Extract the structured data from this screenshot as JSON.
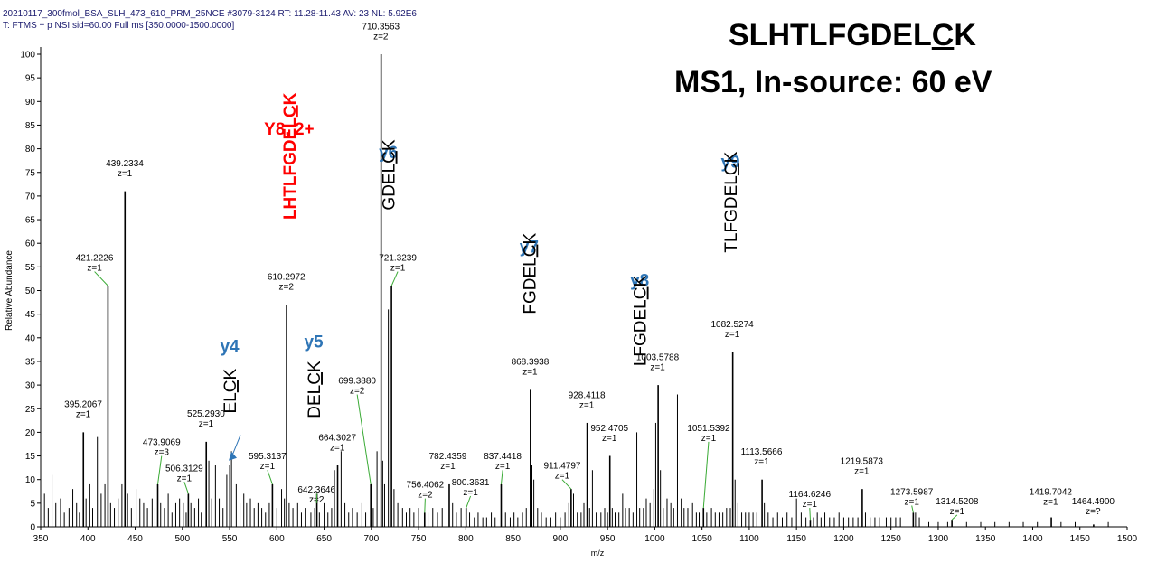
{
  "header": {
    "line1": "20210117_300fmol_BSA_SLH_473_610_PRM_25NCE #3079-3124   RT: 11.28-11.43   AV: 23   NL: 5.92E6",
    "line2": "T: FTMS + p NSI sid=60.00  Full ms [350.0000-1500.0000]"
  },
  "title": {
    "line1_pre": "SLHTLFGDEL",
    "line1_ul": "C",
    "line1_post": "K",
    "line2": "MS1, In-source: 60 eV"
  },
  "colors": {
    "axis": "#000000",
    "peak": "#000000",
    "blue": "#2e75b6",
    "red": "#ff0000",
    "leader": "#3aaa35",
    "header": "#1a1a6e"
  },
  "chart_data": {
    "type": "bar",
    "title": "SLHTLFGDELCK MS1, In-source: 60 eV",
    "xlabel": "m/z",
    "ylabel": "Relative Abundance",
    "xlim": [
      350,
      1500
    ],
    "ylim": [
      0,
      100
    ],
    "xticks": [
      350,
      400,
      450,
      500,
      550,
      600,
      650,
      700,
      750,
      800,
      850,
      900,
      950,
      1000,
      1050,
      1100,
      1150,
      1200,
      1250,
      1300,
      1350,
      1400,
      1450,
      1500
    ],
    "yticks": [
      0,
      5,
      10,
      15,
      20,
      25,
      30,
      35,
      40,
      45,
      50,
      55,
      60,
      65,
      70,
      75,
      80,
      85,
      90,
      95,
      100
    ],
    "peaks": [
      {
        "mz": 395.2067,
        "int": 20,
        "label": "395.2067",
        "z": "z=1",
        "lx": 395,
        "ly": 23
      },
      {
        "mz": 421.2226,
        "int": 51,
        "label": "421.2226",
        "z": "z=1",
        "lx": 407,
        "ly": 54,
        "leader": true
      },
      {
        "mz": 439.2334,
        "int": 71,
        "label": "439.2334",
        "z": "z=1",
        "lx": 439,
        "ly": 74
      },
      {
        "mz": 473.9069,
        "int": 9,
        "label": "473.9069",
        "z": "z=3",
        "lx": 478,
        "ly": 15,
        "leader": true
      },
      {
        "mz": 506.3129,
        "int": 7,
        "label": "506.3129",
        "z": "z=1",
        "lx": 502,
        "ly": 9.5,
        "leader": true
      },
      {
        "mz": 525.293,
        "int": 18,
        "label": "525.2930",
        "z": "z=1",
        "lx": 525,
        "ly": 21
      },
      {
        "mz": 595.3137,
        "int": 9,
        "label": "595.3137",
        "z": "z=1",
        "lx": 590,
        "ly": 12,
        "leader": true
      },
      {
        "mz": 610.2972,
        "int": 47,
        "label": "610.2972",
        "z": "z=2",
        "lx": 610,
        "ly": 50
      },
      {
        "mz": 642.3646,
        "int": 7,
        "label": "642.3646",
        "z": "z=2",
        "lx": 642,
        "ly": 5,
        "leader": true
      },
      {
        "mz": 664.3027,
        "int": 13,
        "label": "664.3027",
        "z": "z=1",
        "lx": 664,
        "ly": 16
      },
      {
        "mz": 699.388,
        "int": 9,
        "label": "699.3880",
        "z": "z=2",
        "lx": 685,
        "ly": 28,
        "leader": true
      },
      {
        "mz": 710.3563,
        "int": 100,
        "label": "710.3563",
        "z": "z=2",
        "lx": 710,
        "ly": 103
      },
      {
        "mz": 721.3239,
        "int": 51,
        "label": "721.3239",
        "z": "z=1",
        "lx": 728,
        "ly": 54,
        "leader": true
      },
      {
        "mz": 756.4062,
        "int": 3,
        "label": "756.4062",
        "z": "z=2",
        "lx": 757,
        "ly": 6,
        "leader": true
      },
      {
        "mz": 782.4359,
        "int": 9,
        "label": "782.4359",
        "z": "z=1",
        "lx": 781,
        "ly": 12
      },
      {
        "mz": 800.3631,
        "int": 4,
        "label": "800.3631",
        "z": "z=1",
        "lx": 805,
        "ly": 6.5,
        "leader": true
      },
      {
        "mz": 837.4418,
        "int": 9,
        "label": "837.4418",
        "z": "z=1",
        "lx": 839,
        "ly": 12,
        "leader": true
      },
      {
        "mz": 868.3938,
        "int": 29,
        "label": "868.3938",
        "z": "z=1",
        "lx": 868,
        "ly": 32
      },
      {
        "mz": 911.4797,
        "int": 8,
        "label": "911.4797",
        "z": "z=1",
        "lx": 902,
        "ly": 10,
        "leader": true
      },
      {
        "mz": 928.4118,
        "int": 22,
        "label": "928.4118",
        "z": "z=1",
        "lx": 928,
        "ly": 25
      },
      {
        "mz": 952.4705,
        "int": 15,
        "label": "952.4705",
        "z": "z=1",
        "lx": 952,
        "ly": 18
      },
      {
        "mz": 1003.5788,
        "int": 30,
        "label": "1003.5788",
        "z": "z=1",
        "lx": 1003,
        "ly": 33
      },
      {
        "mz": 1051.5392,
        "int": 4,
        "label": "1051.5392",
        "z": "z=1",
        "lx": 1057,
        "ly": 18,
        "leader": true
      },
      {
        "mz": 1082.5274,
        "int": 37,
        "label": "1082.5274",
        "z": "z=1",
        "lx": 1082,
        "ly": 40
      },
      {
        "mz": 1113.5666,
        "int": 10,
        "label": "1113.5666",
        "z": "z=1",
        "lx": 1113,
        "ly": 13
      },
      {
        "mz": 1164.6246,
        "int": 1.5,
        "label": "1164.6246",
        "z": "z=1",
        "lx": 1164,
        "ly": 4,
        "leader": true
      },
      {
        "mz": 1219.5873,
        "int": 8,
        "label": "1219.5873",
        "z": "z=1",
        "lx": 1219,
        "ly": 11
      },
      {
        "mz": 1273.5987,
        "int": 3,
        "label": "1273.5987",
        "z": "z=1",
        "lx": 1272,
        "ly": 4.5,
        "leader": true
      },
      {
        "mz": 1314.5208,
        "int": 1.5,
        "label": "1314.5208",
        "z": "z=1",
        "lx": 1320,
        "ly": 2.5,
        "leader": true
      },
      {
        "mz": 1419.7042,
        "int": 2,
        "label": "1419.7042",
        "z": "z=1",
        "lx": 1419,
        "ly": 4.5
      },
      {
        "mz": 1464.49,
        "int": 0.5,
        "label": "1464.4900",
        "z": "z=?",
        "lx": 1464,
        "ly": 2.5
      }
    ],
    "minor_peaks": [
      [
        354,
        7
      ],
      [
        358,
        4
      ],
      [
        362,
        11
      ],
      [
        366,
        5
      ],
      [
        371,
        6
      ],
      [
        375,
        3
      ],
      [
        380,
        4
      ],
      [
        384,
        8
      ],
      [
        388,
        5
      ],
      [
        391,
        3
      ],
      [
        398,
        6
      ],
      [
        402,
        9
      ],
      [
        405,
        4
      ],
      [
        410,
        19
      ],
      [
        414,
        7
      ],
      [
        418,
        9
      ],
      [
        424,
        5
      ],
      [
        428,
        4
      ],
      [
        432,
        6
      ],
      [
        436,
        9
      ],
      [
        442,
        7
      ],
      [
        446,
        4
      ],
      [
        451,
        8
      ],
      [
        455,
        6
      ],
      [
        459,
        5
      ],
      [
        463,
        4
      ],
      [
        468,
        6
      ],
      [
        471,
        4
      ],
      [
        477,
        5
      ],
      [
        481,
        4
      ],
      [
        485,
        7
      ],
      [
        489,
        3
      ],
      [
        493,
        5
      ],
      [
        497,
        6
      ],
      [
        501,
        5
      ],
      [
        504,
        3
      ],
      [
        509,
        5
      ],
      [
        513,
        4
      ],
      [
        517,
        6
      ],
      [
        520,
        3
      ],
      [
        528,
        14
      ],
      [
        531,
        6
      ],
      [
        535,
        13
      ],
      [
        539,
        6
      ],
      [
        543,
        4
      ],
      [
        547,
        11
      ],
      [
        550,
        13
      ],
      [
        552,
        16
      ],
      [
        557,
        9
      ],
      [
        561,
        5
      ],
      [
        565,
        7
      ],
      [
        568,
        5
      ],
      [
        572,
        6
      ],
      [
        576,
        4
      ],
      [
        580,
        5
      ],
      [
        584,
        4
      ],
      [
        588,
        3
      ],
      [
        592,
        5
      ],
      [
        600,
        4
      ],
      [
        605,
        8
      ],
      [
        608,
        6
      ],
      [
        613,
        5
      ],
      [
        617,
        4
      ],
      [
        622,
        5
      ],
      [
        626,
        3
      ],
      [
        630,
        4
      ],
      [
        636,
        3
      ],
      [
        640,
        4
      ],
      [
        645,
        3
      ],
      [
        650,
        5
      ],
      [
        654,
        3
      ],
      [
        658,
        4
      ],
      [
        661,
        12
      ],
      [
        668,
        16
      ],
      [
        672,
        5
      ],
      [
        676,
        3
      ],
      [
        680,
        4
      ],
      [
        685,
        3
      ],
      [
        690,
        5
      ],
      [
        694,
        3
      ],
      [
        702,
        4
      ],
      [
        706,
        16
      ],
      [
        712,
        14
      ],
      [
        714,
        9
      ],
      [
        718,
        46
      ],
      [
        724,
        8
      ],
      [
        728,
        5
      ],
      [
        733,
        4
      ],
      [
        737,
        3
      ],
      [
        741,
        4
      ],
      [
        745,
        3
      ],
      [
        750,
        4
      ],
      [
        760,
        3
      ],
      [
        765,
        4
      ],
      [
        770,
        3
      ],
      [
        775,
        4
      ],
      [
        786,
        5
      ],
      [
        790,
        3
      ],
      [
        795,
        4
      ],
      [
        804,
        3
      ],
      [
        809,
        2
      ],
      [
        813,
        3
      ],
      [
        818,
        2
      ],
      [
        822,
        2
      ],
      [
        827,
        3
      ],
      [
        831,
        2
      ],
      [
        842,
        3
      ],
      [
        847,
        2
      ],
      [
        851,
        3
      ],
      [
        855,
        2
      ],
      [
        860,
        3
      ],
      [
        864,
        4
      ],
      [
        870,
        13
      ],
      [
        872,
        10
      ],
      [
        876,
        4
      ],
      [
        880,
        3
      ],
      [
        885,
        2
      ],
      [
        890,
        2
      ],
      [
        895,
        3
      ],
      [
        900,
        2
      ],
      [
        905,
        3
      ],
      [
        909,
        5
      ],
      [
        914,
        7
      ],
      [
        918,
        3
      ],
      [
        922,
        3
      ],
      [
        925,
        5
      ],
      [
        931,
        4
      ],
      [
        934,
        12
      ],
      [
        938,
        3
      ],
      [
        943,
        3
      ],
      [
        947,
        4
      ],
      [
        950,
        3
      ],
      [
        955,
        4
      ],
      [
        958,
        3
      ],
      [
        962,
        3
      ],
      [
        966,
        7
      ],
      [
        969,
        4
      ],
      [
        973,
        4
      ],
      [
        977,
        3
      ],
      [
        981,
        20
      ],
      [
        984,
        4
      ],
      [
        988,
        4
      ],
      [
        991,
        6
      ],
      [
        995,
        5
      ],
      [
        999,
        8
      ],
      [
        1001,
        22
      ],
      [
        1006,
        12
      ],
      [
        1009,
        4
      ],
      [
        1013,
        6
      ],
      [
        1017,
        5
      ],
      [
        1020,
        4
      ],
      [
        1024,
        28
      ],
      [
        1028,
        6
      ],
      [
        1031,
        4
      ],
      [
        1035,
        4
      ],
      [
        1040,
        5
      ],
      [
        1044,
        3
      ],
      [
        1047,
        3
      ],
      [
        1055,
        3
      ],
      [
        1060,
        4
      ],
      [
        1064,
        3
      ],
      [
        1068,
        3
      ],
      [
        1072,
        3
      ],
      [
        1076,
        4
      ],
      [
        1080,
        4
      ],
      [
        1085,
        10
      ],
      [
        1088,
        5
      ],
      [
        1092,
        3
      ],
      [
        1096,
        3
      ],
      [
        1100,
        3
      ],
      [
        1104,
        3
      ],
      [
        1108,
        3
      ],
      [
        1116,
        5
      ],
      [
        1120,
        3
      ],
      [
        1125,
        2
      ],
      [
        1130,
        3
      ],
      [
        1135,
        2
      ],
      [
        1140,
        3
      ],
      [
        1145,
        2
      ],
      [
        1150,
        6
      ],
      [
        1155,
        3
      ],
      [
        1160,
        2
      ],
      [
        1168,
        2
      ],
      [
        1172,
        3
      ],
      [
        1176,
        2
      ],
      [
        1180,
        3
      ],
      [
        1185,
        2
      ],
      [
        1190,
        2
      ],
      [
        1195,
        3
      ],
      [
        1200,
        2
      ],
      [
        1205,
        2
      ],
      [
        1210,
        2
      ],
      [
        1215,
        2
      ],
      [
        1223,
        3
      ],
      [
        1228,
        2
      ],
      [
        1233,
        2
      ],
      [
        1238,
        2
      ],
      [
        1245,
        2
      ],
      [
        1250,
        2
      ],
      [
        1255,
        2
      ],
      [
        1260,
        2
      ],
      [
        1268,
        2
      ],
      [
        1276,
        3
      ],
      [
        1280,
        2
      ],
      [
        1290,
        1
      ],
      [
        1300,
        1
      ],
      [
        1310,
        1
      ],
      [
        1330,
        1
      ],
      [
        1345,
        1
      ],
      [
        1360,
        1
      ],
      [
        1375,
        1
      ],
      [
        1390,
        1
      ],
      [
        1405,
        1
      ],
      [
        1430,
        1
      ],
      [
        1445,
        1
      ],
      [
        1480,
        1
      ]
    ],
    "annotations": [
      {
        "name": "y4",
        "ion": "y4",
        "seq_pre": "EL",
        "seq_ul": "C",
        "seq_post": "K",
        "x": 550,
        "ion_y": 37,
        "seq_y": 24,
        "color": "blue",
        "arrow": true
      },
      {
        "name": "y5",
        "ion": "y5",
        "seq_pre": "DEL",
        "seq_ul": "C",
        "seq_post": "K",
        "x": 639,
        "ion_y": 38,
        "seq_y": 23,
        "color": "blue"
      },
      {
        "name": "y8-2plus",
        "ion": "Y8, 2+",
        "seq_pre": "LHTLFGDEL",
        "seq_ul": "C",
        "seq_post": "K",
        "x": 613,
        "ion_y": 83,
        "seq_y": 65,
        "color": "red"
      },
      {
        "name": "y6",
        "ion": "y6",
        "seq_pre": "GDEL",
        "seq_ul": "C",
        "seq_post": "K",
        "x": 718,
        "ion_y": 78,
        "seq_y": 67,
        "color": "blue"
      },
      {
        "name": "y7",
        "ion": "y7",
        "seq_pre": "FGDEL",
        "seq_ul": "C",
        "seq_post": "K",
        "x": 867,
        "ion_y": 58,
        "seq_y": 45,
        "color": "blue"
      },
      {
        "name": "y8",
        "ion": "y8",
        "seq_pre": "LFGDEL",
        "seq_ul": "C",
        "seq_post": "K",
        "x": 984,
        "ion_y": 51,
        "seq_y": 34,
        "color": "blue"
      },
      {
        "name": "y9",
        "ion": "y9",
        "seq_pre": "TLFGDEL",
        "seq_ul": "C",
        "seq_post": "K",
        "x": 1080,
        "ion_y": 76,
        "seq_y": 58,
        "color": "blue"
      }
    ]
  }
}
